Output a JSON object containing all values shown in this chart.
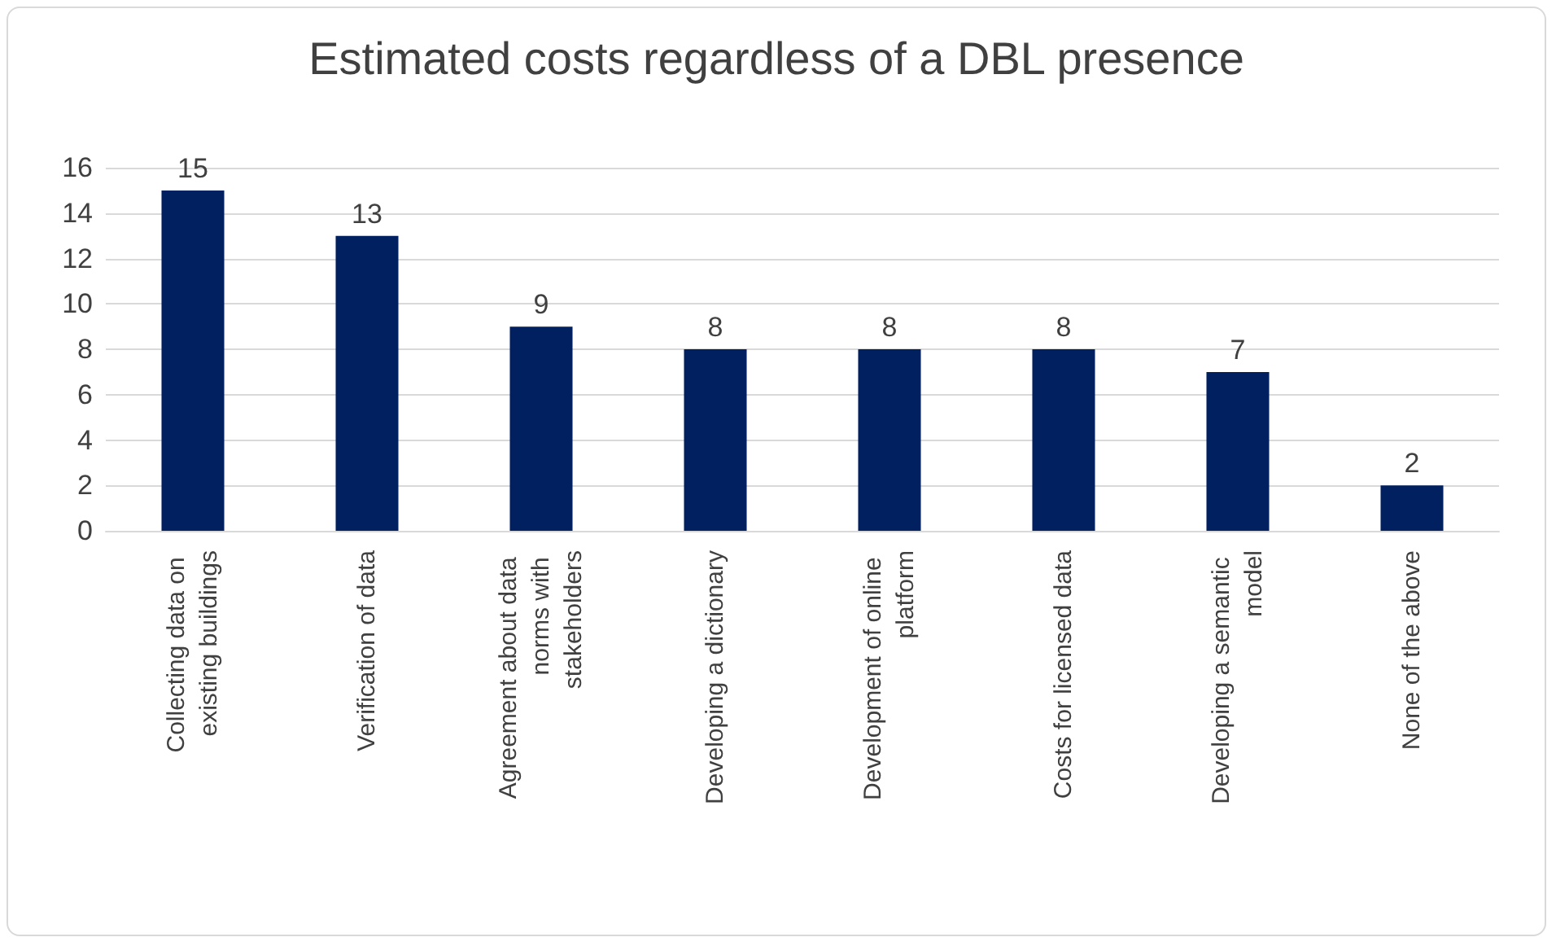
{
  "chart_data": {
    "type": "bar",
    "title": "Estimated costs regardless of a DBL presence",
    "categories": [
      "Collecting data on existing buildings",
      "Verification of data",
      "Agreement about data norms with stakeholders",
      "Developing a dictionary",
      "Development of online platform",
      "Costs for licensed data",
      "Developing a semantic model",
      "None of the above"
    ],
    "values": [
      15,
      13,
      9,
      8,
      8,
      8,
      7,
      2
    ],
    "color": "#002060",
    "ylim": [
      0,
      16
    ],
    "yticks": [
      0,
      2,
      4,
      6,
      8,
      10,
      12,
      14,
      16
    ],
    "grid": "y",
    "data_labels": true
  }
}
